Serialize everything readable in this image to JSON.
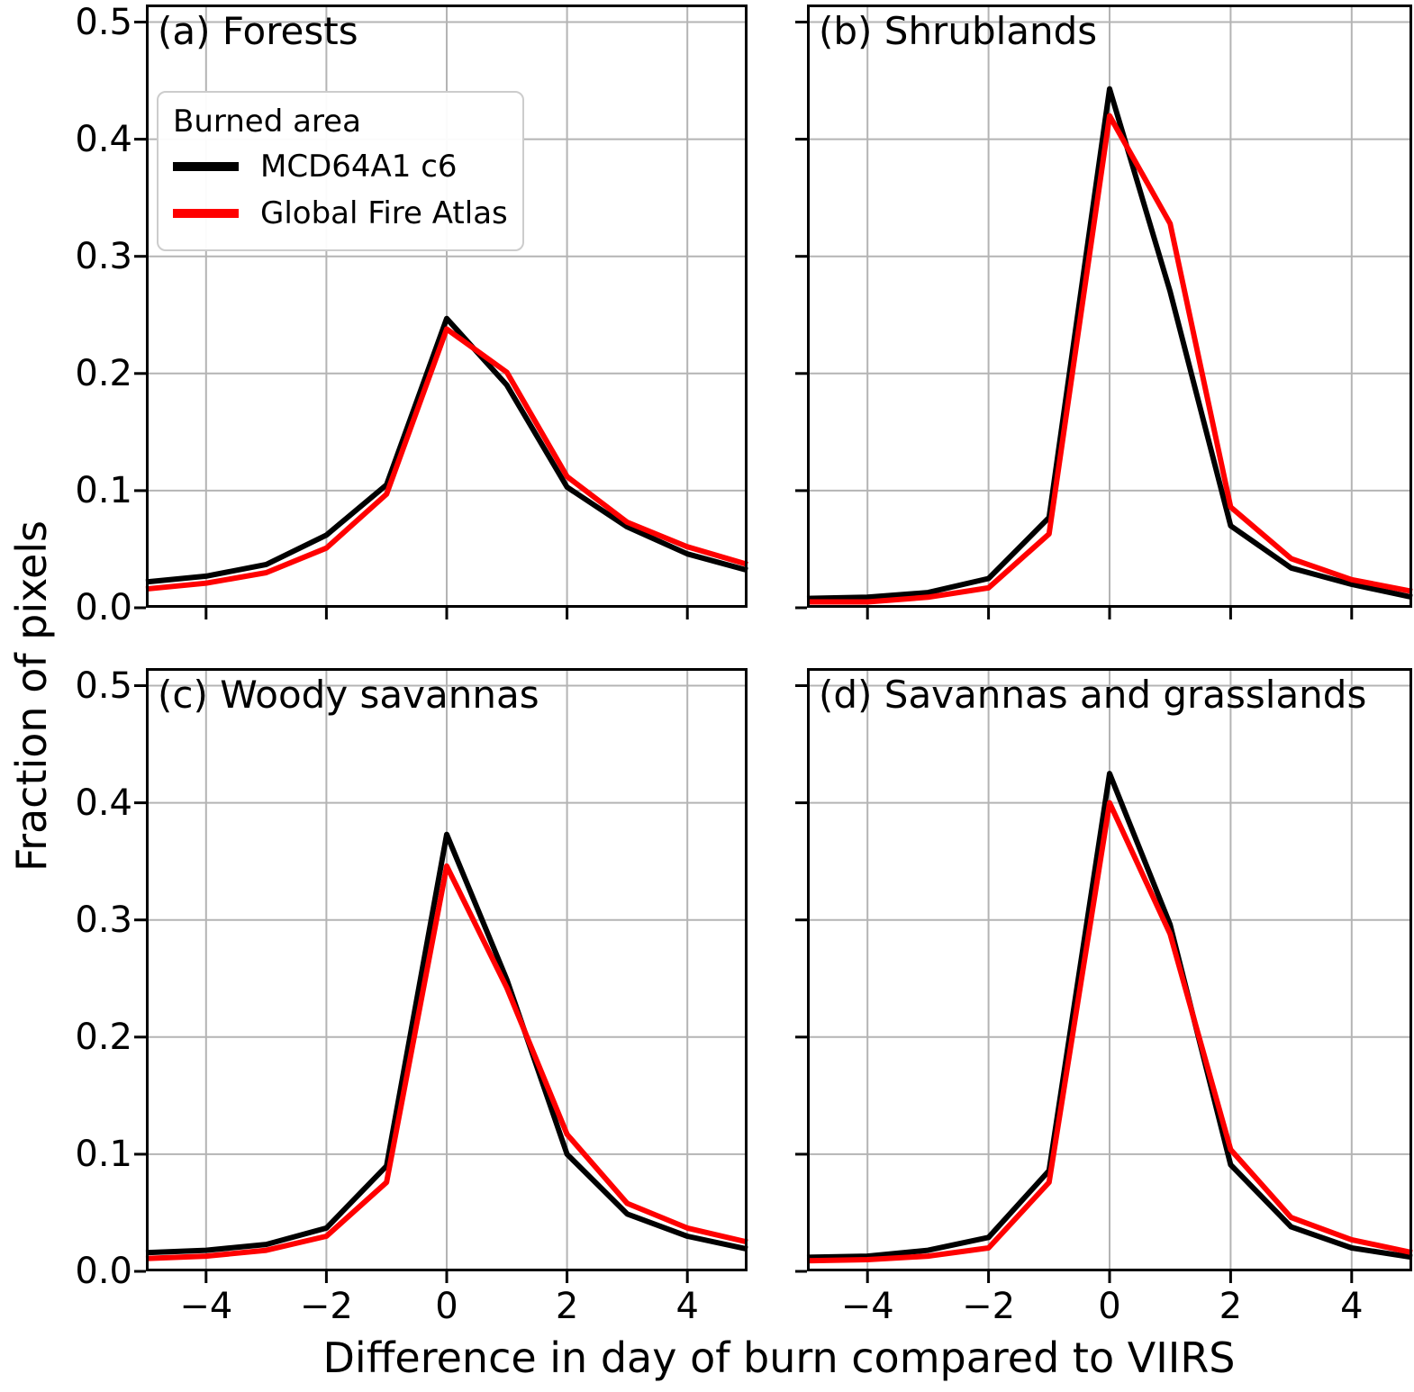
{
  "figure": {
    "ylabel": "Fraction of pixels",
    "xlabel": "Difference in day of burn compared to VIIRS",
    "colors": {
      "mcd64a1": "#000000",
      "global_fire_atlas": "#ff0000",
      "grid": "#b4b4b4",
      "spine": "#000000",
      "background": "#ffffff",
      "legend_border": "#cccccc"
    },
    "legend": {
      "title": "Burned area",
      "entries": [
        {
          "label": "MCD64A1 c6",
          "color": "#000000"
        },
        {
          "label": "Global Fire Atlas",
          "color": "#ff0000"
        }
      ]
    }
  },
  "chart_data": [
    {
      "type": "line",
      "title": "(a) Forests",
      "xlabel": "Difference in day of burn compared to VIIRS",
      "ylabel": "Fraction of pixels",
      "x": [
        -5,
        -4,
        -3,
        -2,
        -1,
        0,
        1,
        2,
        3,
        4,
        5
      ],
      "xlim": [
        -5,
        5
      ],
      "ylim": [
        0,
        0.515
      ],
      "xticks": [
        -4,
        -2,
        0,
        2,
        4
      ],
      "yticks": [
        0.0,
        0.1,
        0.2,
        0.3,
        0.4,
        0.5
      ],
      "grid": true,
      "legend_position": "upper left",
      "series": [
        {
          "name": "MCD64A1 c6",
          "color": "#000000",
          "values": [
            0.022,
            0.027,
            0.037,
            0.062,
            0.105,
            0.247,
            0.19,
            0.103,
            0.069,
            0.046,
            0.032
          ]
        },
        {
          "name": "Global Fire Atlas",
          "color": "#ff0000",
          "values": [
            0.016,
            0.021,
            0.03,
            0.051,
            0.097,
            0.238,
            0.201,
            0.112,
            0.073,
            0.052,
            0.037
          ]
        }
      ]
    },
    {
      "type": "line",
      "title": "(b) Shrublands",
      "x": [
        -5,
        -4,
        -3,
        -2,
        -1,
        0,
        1,
        2,
        3,
        4,
        5
      ],
      "xlim": [
        -5,
        5
      ],
      "ylim": [
        0,
        0.515
      ],
      "xticks": [
        -4,
        -2,
        0,
        2,
        4
      ],
      "yticks": [
        0.0,
        0.1,
        0.2,
        0.3,
        0.4,
        0.5
      ],
      "grid": true,
      "series": [
        {
          "name": "MCD64A1 c6",
          "color": "#000000",
          "values": [
            0.008,
            0.009,
            0.013,
            0.025,
            0.077,
            0.443,
            0.27,
            0.07,
            0.034,
            0.02,
            0.009
          ]
        },
        {
          "name": "Global Fire Atlas",
          "color": "#ff0000",
          "values": [
            0.005,
            0.005,
            0.009,
            0.017,
            0.063,
            0.42,
            0.328,
            0.086,
            0.042,
            0.024,
            0.014
          ]
        }
      ]
    },
    {
      "type": "line",
      "title": "(c) Woody savannas",
      "x": [
        -5,
        -4,
        -3,
        -2,
        -1,
        0,
        1,
        2,
        3,
        4,
        5
      ],
      "xlim": [
        -5,
        5
      ],
      "ylim": [
        0,
        0.515
      ],
      "xticks": [
        -4,
        -2,
        0,
        2,
        4
      ],
      "yticks": [
        0.0,
        0.1,
        0.2,
        0.3,
        0.4,
        0.5
      ],
      "grid": true,
      "series": [
        {
          "name": "MCD64A1 c6",
          "color": "#000000",
          "values": [
            0.016,
            0.018,
            0.023,
            0.037,
            0.09,
            0.373,
            0.249,
            0.1,
            0.049,
            0.03,
            0.019
          ]
        },
        {
          "name": "Global Fire Atlas",
          "color": "#ff0000",
          "values": [
            0.011,
            0.013,
            0.018,
            0.03,
            0.076,
            0.346,
            0.242,
            0.117,
            0.058,
            0.037,
            0.025
          ]
        }
      ]
    },
    {
      "type": "line",
      "title": "(d) Savannas and grasslands",
      "x": [
        -5,
        -4,
        -3,
        -2,
        -1,
        0,
        1,
        2,
        3,
        4,
        5
      ],
      "xlim": [
        -5,
        5
      ],
      "ylim": [
        0,
        0.515
      ],
      "xticks": [
        -4,
        -2,
        0,
        2,
        4
      ],
      "yticks": [
        0.0,
        0.1,
        0.2,
        0.3,
        0.4,
        0.5
      ],
      "grid": true,
      "series": [
        {
          "name": "MCD64A1 c6",
          "color": "#000000",
          "values": [
            0.012,
            0.013,
            0.018,
            0.029,
            0.086,
            0.425,
            0.296,
            0.091,
            0.038,
            0.02,
            0.012
          ]
        },
        {
          "name": "Global Fire Atlas",
          "color": "#ff0000",
          "values": [
            0.009,
            0.01,
            0.013,
            0.02,
            0.076,
            0.4,
            0.288,
            0.104,
            0.046,
            0.027,
            0.016
          ]
        }
      ]
    }
  ]
}
